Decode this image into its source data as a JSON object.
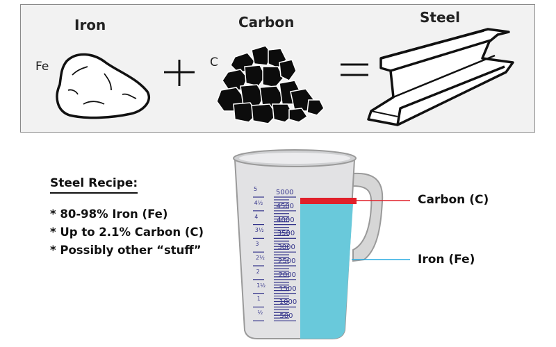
{
  "equation": {
    "iron_label": "Iron",
    "iron_symbol": "Fe",
    "carbon_label": "Carbon",
    "carbon_symbol": "C",
    "steel_label": "Steel",
    "plus": "+",
    "equals": "="
  },
  "recipe": {
    "title": "Steel Recipe:",
    "items": [
      "* 80-98% Iron (Fe)",
      "* Up to 2.1% Carbon (C)",
      "* Possibly other “stuff”"
    ]
  },
  "cup": {
    "ml_marks": [
      "5000",
      "4500",
      "4000",
      "3500",
      "3000",
      "2500",
      "2000",
      "1500",
      "1000",
      "500"
    ],
    "cup_marks": [
      "5",
      "4½",
      "4",
      "3½",
      "3",
      "2½",
      "2",
      "1½",
      "1",
      "½"
    ]
  },
  "callouts": {
    "carbon": "Carbon (C)",
    "iron": "Iron (Fe)"
  },
  "colors": {
    "iron_fill": "#69c9db",
    "carbon_band": "#e0202a",
    "iron_line": "#29abe2",
    "carbon_line": "#e0202a"
  }
}
